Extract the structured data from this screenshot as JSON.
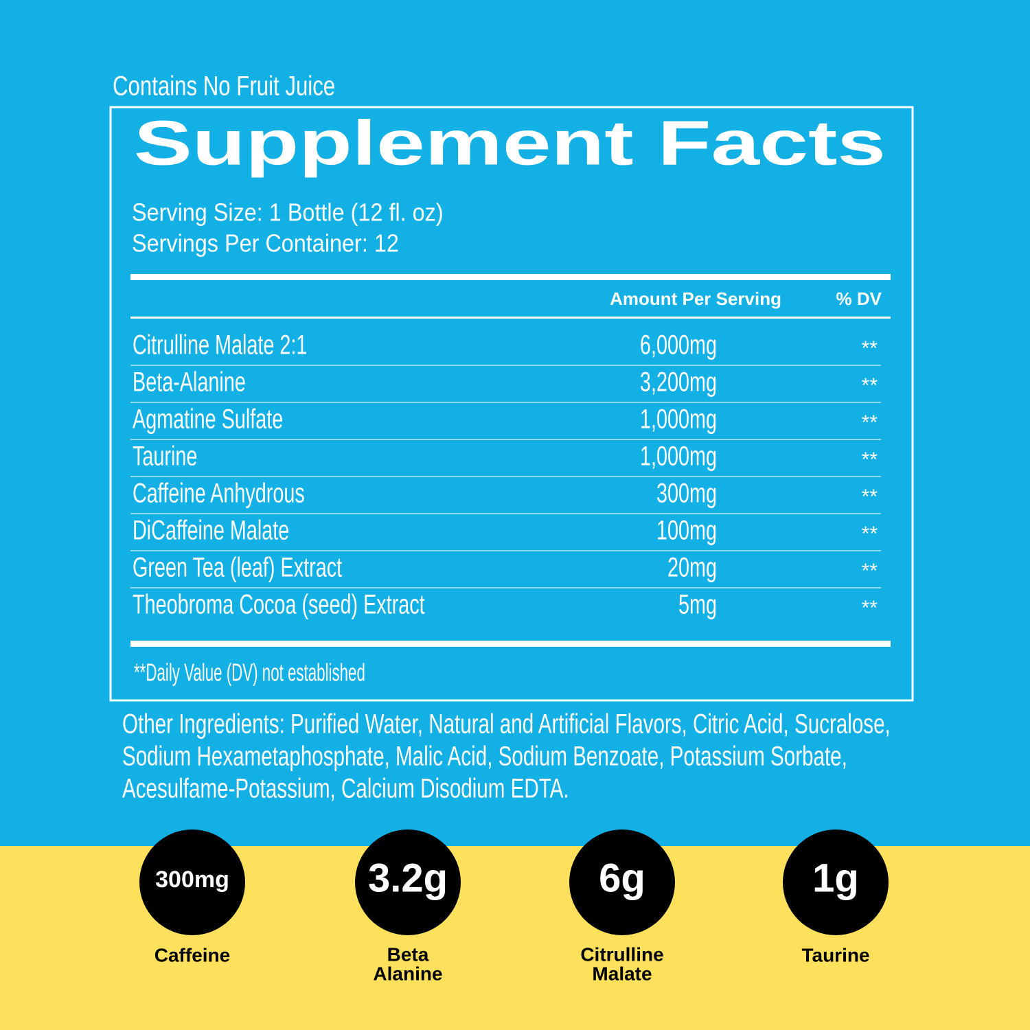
{
  "note": "Contains No Fruit Juice",
  "title": "Supplement Facts",
  "serving_size": "Serving Size: 1 Bottle (12 fl. oz)",
  "servings_per_container": "Servings Per Container: 12",
  "table": {
    "headers": [
      "Amount Per Serving",
      "% DV"
    ],
    "rows": [
      [
        "Citrulline Malate 2:1",
        "6,000mg",
        "**"
      ],
      [
        "Beta-Alanine",
        "3,200mg",
        "**"
      ],
      [
        "Agmatine Sulfate",
        "1,000mg",
        "**"
      ],
      [
        "Taurine",
        "1,000mg",
        "**"
      ],
      [
        "Caffeine Anhydrous",
        "300mg",
        "**"
      ],
      [
        "DiCaffeine Malate",
        "100mg",
        "**"
      ],
      [
        "Green Tea (leaf) Extract",
        "20mg",
        "**"
      ],
      [
        "Theobroma Cocoa (seed) Extract",
        "5mg",
        "**"
      ]
    ]
  },
  "footnote": "**Daily Value (DV) not established",
  "other_ingredients": [
    "Other Ingredients: Purified Water, Natural and Artificial Flavors, Citric Acid, Sucralose,",
    "Sodium Hexametaphosphate, Malic Acid, Sodium Benzoate, Potassium Sorbate,",
    "Acesulfame-Potassium, Calcium Disodium EDTA."
  ],
  "highlights": [
    {
      "amount": "300mg",
      "label": [
        "Caffeine"
      ]
    },
    {
      "amount": "3.2g",
      "label": [
        "Beta",
        "Alanine"
      ]
    },
    {
      "amount": "6g",
      "label": [
        "Citrulline",
        "Malate"
      ]
    },
    {
      "amount": "1g",
      "label": [
        "Taurine"
      ]
    }
  ]
}
